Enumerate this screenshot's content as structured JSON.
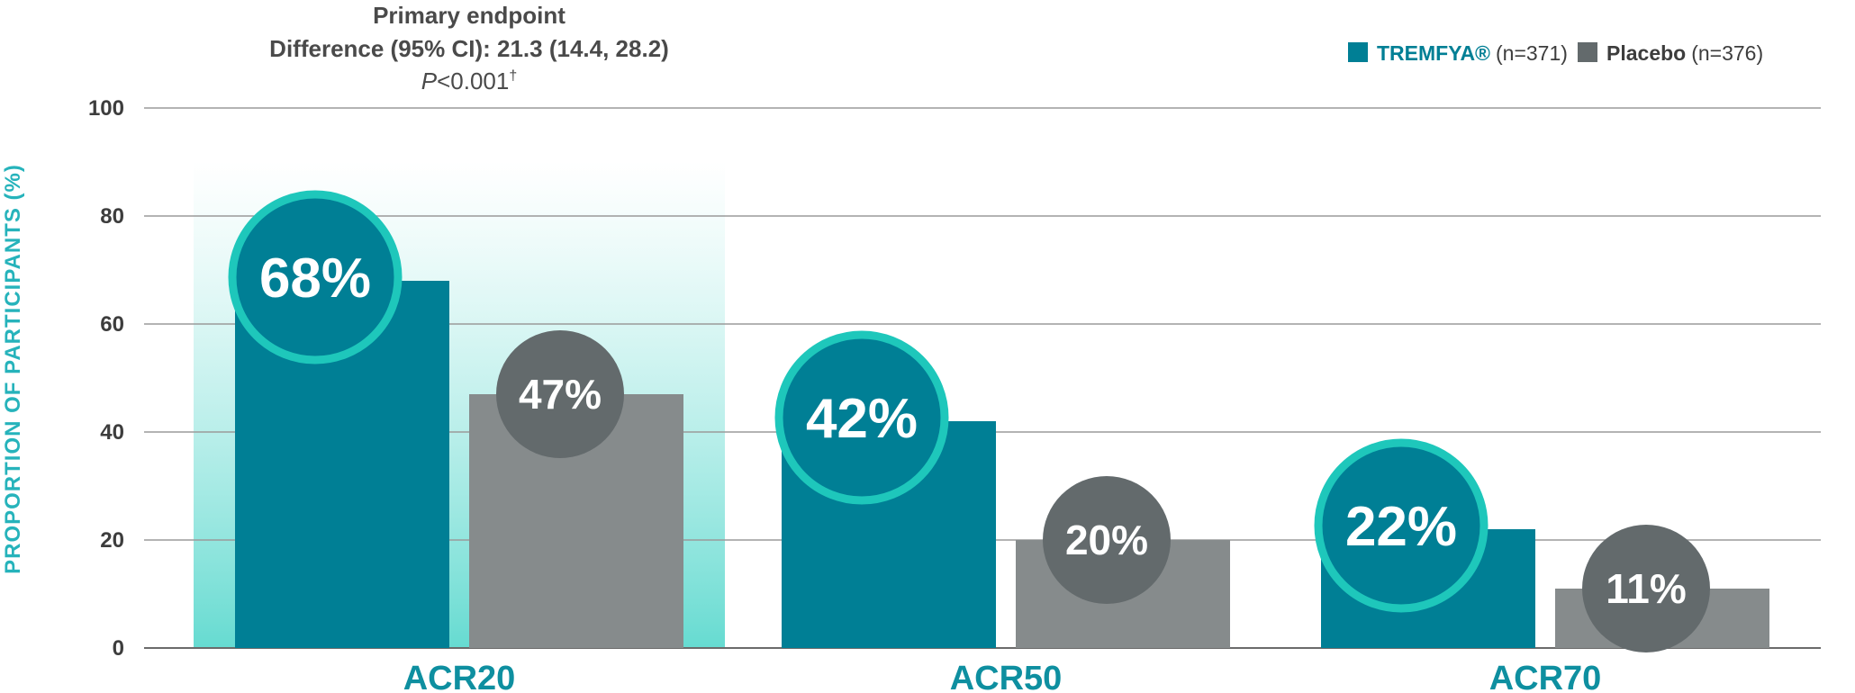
{
  "chart_data": {
    "type": "bar",
    "categories": [
      "ACR20",
      "ACR50",
      "ACR70"
    ],
    "series": [
      {
        "name": "TREMFYA®",
        "n_label": "(n=371)",
        "values": [
          68,
          42,
          22
        ],
        "labels": [
          "68%",
          "42%",
          "22%"
        ]
      },
      {
        "name": "Placebo",
        "n_label": "(n=376)",
        "values": [
          47,
          20,
          11
        ],
        "labels": [
          "47%",
          "20%",
          "11%"
        ]
      }
    ],
    "ylabel": "PROPORTION OF PARTICIPANTS (%)",
    "ylim": [
      0,
      100
    ],
    "yticks": [
      0,
      20,
      40,
      60,
      80,
      100
    ],
    "grid": true,
    "legend_position": "top-right",
    "highlight_category": "ACR20",
    "annotation": {
      "line1": "Primary endpoint",
      "line2": "Difference (95% CI): 21.3 (14.4, 28.2)",
      "p_italic": "P",
      "p_rest": "<0.001",
      "p_dagger": "†"
    }
  },
  "colors": {
    "tremfya": "#007f95",
    "placebo": "#868b8c",
    "tremfya_ring": "#1ec7bb",
    "placebo_circle": "#636a6c",
    "axis_text": "#3d3d3d",
    "category_text": "#0e8fa0",
    "ylabel_text": "#26b3bb",
    "grid": "#9a9a9a",
    "highlight_top": "#ffffff",
    "highlight_bottom": "#66dbd1"
  }
}
